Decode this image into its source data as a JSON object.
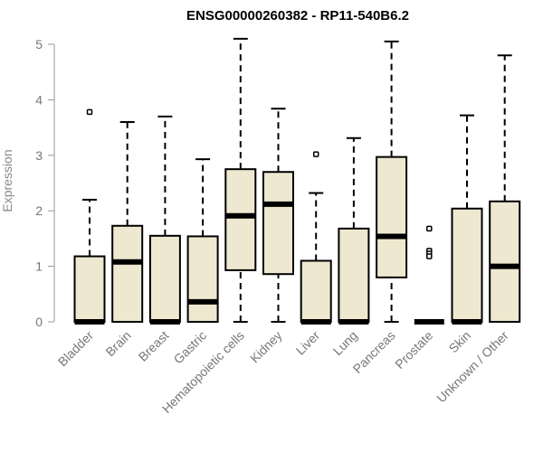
{
  "chart_data": {
    "type": "boxplot",
    "title": "ENSG00000260382 - RP11-540B6.2",
    "xlabel": "",
    "ylabel": "Expression",
    "ylim": [
      0,
      5.15
    ],
    "yticks": [
      0,
      1,
      2,
      3,
      4,
      5
    ],
    "grid": false,
    "legend": "none",
    "box_fill": "#efe8d0",
    "box_stroke": "#000000",
    "categories": [
      "Bladder",
      "Brain",
      "Breast",
      "Gastric",
      "Hematopoietic cells",
      "Kidney",
      "Liver",
      "Lung",
      "Pancreas",
      "Prostate",
      "Skin",
      "Unknown / Other"
    ],
    "boxes": [
      {
        "min": 0,
        "q1": 0,
        "median": 0,
        "q3": 1.18,
        "max": 2.2,
        "outliers": [
          3.78
        ]
      },
      {
        "min": 0,
        "q1": 0,
        "median": 1.08,
        "q3": 1.73,
        "max": 3.6,
        "outliers": []
      },
      {
        "min": 0,
        "q1": 0,
        "median": 0,
        "q3": 1.55,
        "max": 3.7,
        "outliers": []
      },
      {
        "min": 0,
        "q1": 0,
        "median": 0.36,
        "q3": 1.54,
        "max": 2.93,
        "outliers": []
      },
      {
        "min": 0,
        "q1": 0.93,
        "median": 1.91,
        "q3": 2.75,
        "max": 5.1,
        "outliers": []
      },
      {
        "min": 0,
        "q1": 0.86,
        "median": 2.12,
        "q3": 2.7,
        "max": 3.84,
        "outliers": []
      },
      {
        "min": 0,
        "q1": 0,
        "median": 0,
        "q3": 1.1,
        "max": 2.32,
        "outliers": [
          3.02
        ]
      },
      {
        "min": 0,
        "q1": 0,
        "median": 0,
        "q3": 1.68,
        "max": 3.31,
        "outliers": []
      },
      {
        "min": 0,
        "q1": 0.8,
        "median": 1.54,
        "q3": 2.97,
        "max": 5.05,
        "outliers": []
      },
      {
        "min": 0,
        "q1": 0,
        "median": 0,
        "q3": 0,
        "max": 0,
        "outliers": [
          1.68,
          1.28,
          1.23,
          1.18
        ]
      },
      {
        "min": 0,
        "q1": 0,
        "median": 0,
        "q3": 2.04,
        "max": 3.72,
        "outliers": []
      },
      {
        "min": 0,
        "q1": 0,
        "median": 1.0,
        "q3": 2.17,
        "max": 4.8,
        "outliers": []
      }
    ]
  }
}
